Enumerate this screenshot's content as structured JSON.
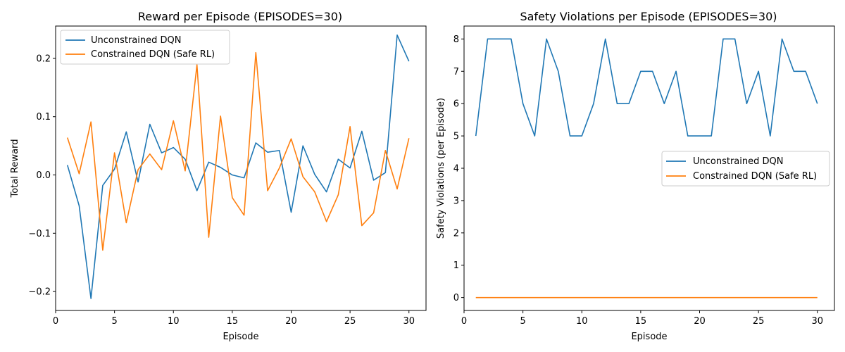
{
  "chart_data": [
    {
      "type": "line",
      "title": "Reward per Episode (EPISODES=30)",
      "xlabel": "Episode",
      "ylabel": "Total Reward",
      "xlim": [
        0,
        31.45
      ],
      "ylim": [
        -0.2325,
        0.2555
      ],
      "xticks": [
        0,
        5,
        10,
        15,
        20,
        25,
        30
      ],
      "xtick_labels": [
        "0",
        "5",
        "10",
        "15",
        "20",
        "25",
        "30"
      ],
      "yticks": [
        -0.2,
        -0.1,
        0.0,
        0.1,
        0.2
      ],
      "ytick_labels": [
        "−0.2",
        "−0.1",
        "0.0",
        "0.1",
        "0.2"
      ],
      "legend": "top-left",
      "grid": false,
      "x": [
        1,
        2,
        3,
        4,
        5,
        6,
        7,
        8,
        9,
        10,
        11,
        12,
        13,
        14,
        15,
        16,
        17,
        18,
        19,
        20,
        21,
        22,
        23,
        24,
        25,
        26,
        27,
        28,
        29,
        30
      ],
      "series": [
        {
          "name": "Unconstrained DQN",
          "color": "#1f77b4",
          "values": [
            0.017,
            -0.053,
            -0.212,
            -0.018,
            0.01,
            0.074,
            -0.012,
            0.087,
            0.038,
            0.047,
            0.027,
            -0.027,
            0.022,
            0.013,
            0.0,
            -0.005,
            0.055,
            0.039,
            0.042,
            -0.064,
            0.05,
            0.001,
            -0.029,
            0.027,
            0.012,
            0.075,
            -0.009,
            0.004,
            0.24,
            0.195
          ]
        },
        {
          "name": "Constrained DQN (Safe RL)",
          "color": "#ff7f0e",
          "values": [
            0.064,
            0.002,
            0.091,
            -0.129,
            0.038,
            -0.082,
            0.009,
            0.036,
            0.009,
            0.093,
            0.007,
            0.189,
            -0.107,
            0.101,
            -0.039,
            -0.069,
            0.21,
            -0.027,
            0.012,
            0.062,
            -0.003,
            -0.029,
            -0.08,
            -0.034,
            0.083,
            -0.087,
            -0.065,
            0.042,
            -0.024,
            0.063
          ]
        }
      ]
    },
    {
      "type": "line",
      "title": "Safety Violations per Episode (EPISODES=30)",
      "xlabel": "Episode",
      "ylabel": "Safety Violations (per Episode)",
      "xlim": [
        0,
        31.45
      ],
      "ylim": [
        -0.4,
        8.4
      ],
      "xticks": [
        0,
        5,
        10,
        15,
        20,
        25,
        30
      ],
      "xtick_labels": [
        "0",
        "5",
        "10",
        "15",
        "20",
        "25",
        "30"
      ],
      "yticks": [
        0,
        1,
        2,
        3,
        4,
        5,
        6,
        7,
        8
      ],
      "ytick_labels": [
        "0",
        "1",
        "2",
        "3",
        "4",
        "5",
        "6",
        "7",
        "8"
      ],
      "legend": "center-right",
      "grid": false,
      "x": [
        1,
        2,
        3,
        4,
        5,
        6,
        7,
        8,
        9,
        10,
        11,
        12,
        13,
        14,
        15,
        16,
        17,
        18,
        19,
        20,
        21,
        22,
        23,
        24,
        25,
        26,
        27,
        28,
        29,
        30
      ],
      "series": [
        {
          "name": "Unconstrained DQN",
          "color": "#1f77b4",
          "values": [
            5,
            8,
            8,
            8,
            6,
            5,
            8,
            7,
            5,
            5,
            6,
            8,
            6,
            6,
            7,
            7,
            6,
            7,
            5,
            5,
            5,
            8,
            8,
            6,
            7,
            5,
            8,
            7,
            7,
            6
          ]
        },
        {
          "name": "Constrained DQN (Safe RL)",
          "color": "#ff7f0e",
          "values": [
            0,
            0,
            0,
            0,
            0,
            0,
            0,
            0,
            0,
            0,
            0,
            0,
            0,
            0,
            0,
            0,
            0,
            0,
            0,
            0,
            0,
            0,
            0,
            0,
            0,
            0,
            0,
            0,
            0,
            0
          ]
        }
      ]
    }
  ]
}
